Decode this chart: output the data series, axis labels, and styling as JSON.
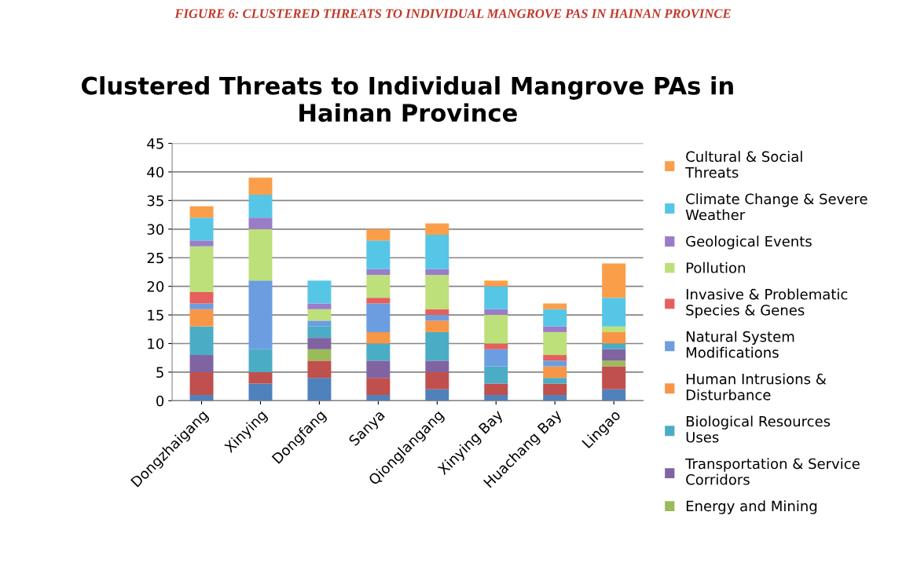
{
  "chart_data": {
    "type": "bar",
    "stacked": true,
    "title": "Clustered Threats to Individual Mangrove PAs in Hainan Province",
    "annotations": [
      "FIGURE 6: CLUSTERED THREATS TO INDIVIDUAL MANGROVE PAS IN HAINAN PROVINCE"
    ],
    "categories": [
      "Dongzhaigang",
      "Xinying",
      "Dongfang",
      "Sanya",
      "Qionglangang",
      "Xinying Bay",
      "Huachang Bay",
      "Lingao"
    ],
    "ylim": [
      0,
      45
    ],
    "yticks": [
      0,
      5,
      10,
      15,
      20,
      25,
      30,
      35,
      40,
      45
    ],
    "grid": "y",
    "legend": "right",
    "series": [
      {
        "color": "#4f81bd",
        "values": [
          1,
          3,
          4,
          1,
          2,
          1,
          1,
          2
        ]
      },
      {
        "color": "#c0504d",
        "values": [
          4,
          2,
          3,
          3,
          3,
          2,
          2,
          4
        ]
      },
      {
        "name": "Energy and Mining",
        "color": "#9bbb59",
        "values": [
          0,
          0,
          2,
          0,
          0,
          0,
          0,
          1
        ]
      },
      {
        "name": "Transportation & Service Corridors",
        "color": "#8064a2",
        "values": [
          3,
          0,
          2,
          3,
          2,
          0,
          0,
          2
        ]
      },
      {
        "name": "Biological Resources Uses",
        "color": "#4bacc6",
        "values": [
          5,
          4,
          2,
          3,
          5,
          3,
          1,
          1
        ]
      },
      {
        "name": "Human Intrusions & Disturbance",
        "color": "#f79646",
        "values": [
          3,
          0,
          0,
          2,
          2,
          0,
          2,
          2
        ]
      },
      {
        "name": "Natural System Modifications",
        "color": "#6b9de0",
        "values": [
          1,
          12,
          1,
          5,
          1,
          3,
          1,
          0
        ]
      },
      {
        "name": "Invasive & Problematic Species & Genes",
        "color": "#e5605c",
        "values": [
          2,
          0,
          0,
          1,
          1,
          1,
          1,
          0
        ]
      },
      {
        "name": "Pollution",
        "color": "#bde07a",
        "values": [
          8,
          9,
          2,
          4,
          6,
          5,
          4,
          1
        ]
      },
      {
        "name": "Geological Events",
        "color": "#9a7cc8",
        "values": [
          1,
          2,
          1,
          1,
          1,
          1,
          1,
          0
        ]
      },
      {
        "name": "Climate Change & Severe Weather",
        "color": "#56c6e6",
        "values": [
          4,
          4,
          4,
          5,
          6,
          4,
          3,
          5
        ]
      },
      {
        "name": "Cultural & Social Threats",
        "color": "#fb9e4a",
        "values": [
          2,
          3,
          0,
          2,
          2,
          1,
          1,
          6
        ]
      }
    ]
  }
}
